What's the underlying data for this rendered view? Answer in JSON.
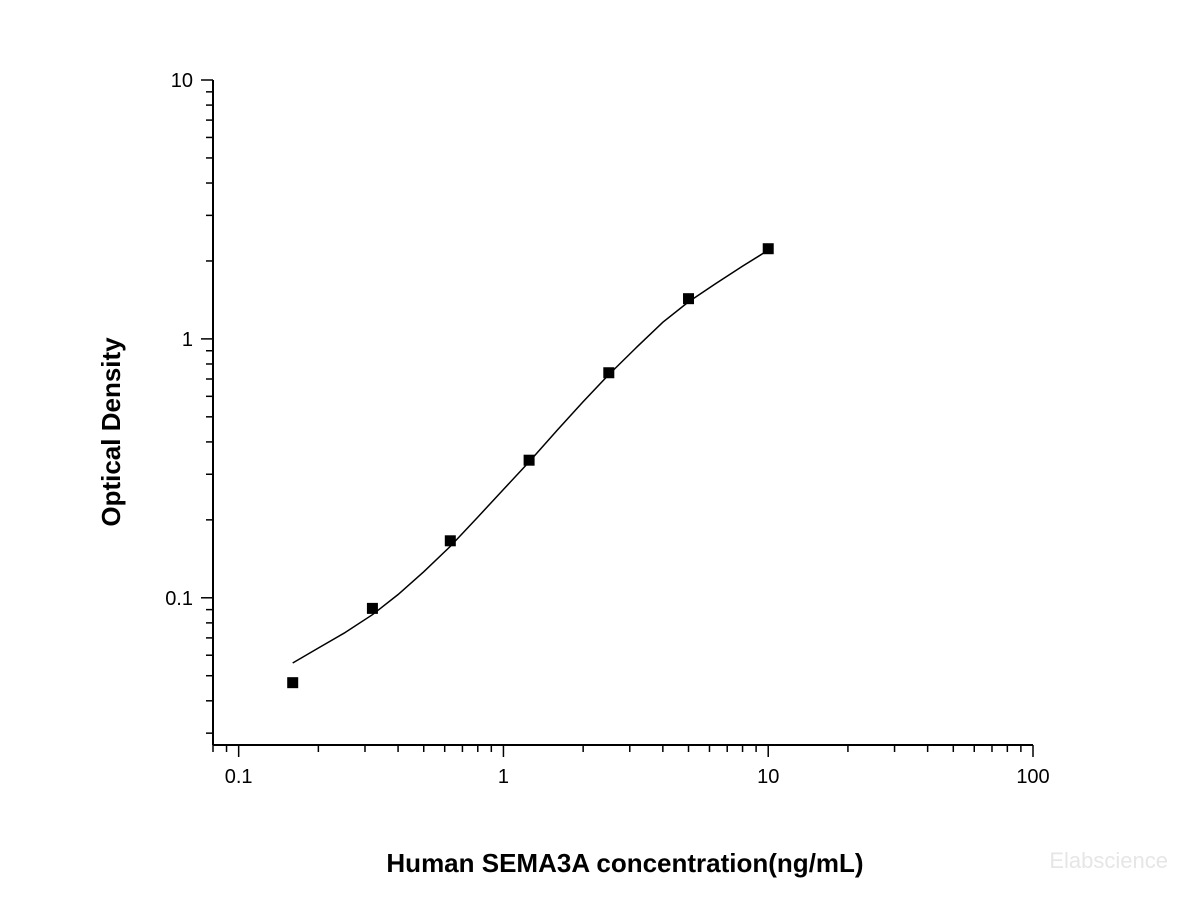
{
  "chart_data": {
    "type": "scatter",
    "title": "",
    "xlabel": "Human SEMA3A concentration(ng/mL)",
    "ylabel": "Optical Density",
    "x_scale": "log",
    "y_scale": "log",
    "xlim": [
      0.08,
      100
    ],
    "ylim": [
      0.027,
      10
    ],
    "x_ticks": [
      {
        "value": 0.1,
        "label": "0.1"
      },
      {
        "value": 1,
        "label": "1"
      },
      {
        "value": 10,
        "label": "10"
      },
      {
        "value": 100,
        "label": "100"
      }
    ],
    "y_ticks": [
      {
        "value": 0.1,
        "label": "0.1"
      },
      {
        "value": 1,
        "label": "1"
      },
      {
        "value": 10,
        "label": "10"
      }
    ],
    "grid": false,
    "marker": "square",
    "marker_color": "#000000",
    "line_color": "#000000",
    "series": [
      {
        "points": [
          {
            "x": 0.16,
            "y": 0.047
          },
          {
            "x": 0.32,
            "y": 0.091
          },
          {
            "x": 0.63,
            "y": 0.166
          },
          {
            "x": 1.25,
            "y": 0.34
          },
          {
            "x": 2.5,
            "y": 0.74
          },
          {
            "x": 5,
            "y": 1.43
          },
          {
            "x": 10,
            "y": 2.23
          }
        ],
        "fit_curve": [
          {
            "x": 0.16,
            "y": 0.056
          },
          {
            "x": 0.2,
            "y": 0.064
          },
          {
            "x": 0.25,
            "y": 0.073
          },
          {
            "x": 0.32,
            "y": 0.086
          },
          {
            "x": 0.4,
            "y": 0.103
          },
          {
            "x": 0.5,
            "y": 0.126
          },
          {
            "x": 0.63,
            "y": 0.158
          },
          {
            "x": 0.8,
            "y": 0.205
          },
          {
            "x": 1.0,
            "y": 0.262
          },
          {
            "x": 1.25,
            "y": 0.335
          },
          {
            "x": 1.6,
            "y": 0.445
          },
          {
            "x": 2.0,
            "y": 0.572
          },
          {
            "x": 2.5,
            "y": 0.728
          },
          {
            "x": 3.2,
            "y": 0.933
          },
          {
            "x": 4.0,
            "y": 1.16
          },
          {
            "x": 5.0,
            "y": 1.39
          },
          {
            "x": 6.3,
            "y": 1.63
          },
          {
            "x": 8.0,
            "y": 1.91
          },
          {
            "x": 10.0,
            "y": 2.2
          }
        ]
      }
    ]
  },
  "watermark": "Elabscience"
}
